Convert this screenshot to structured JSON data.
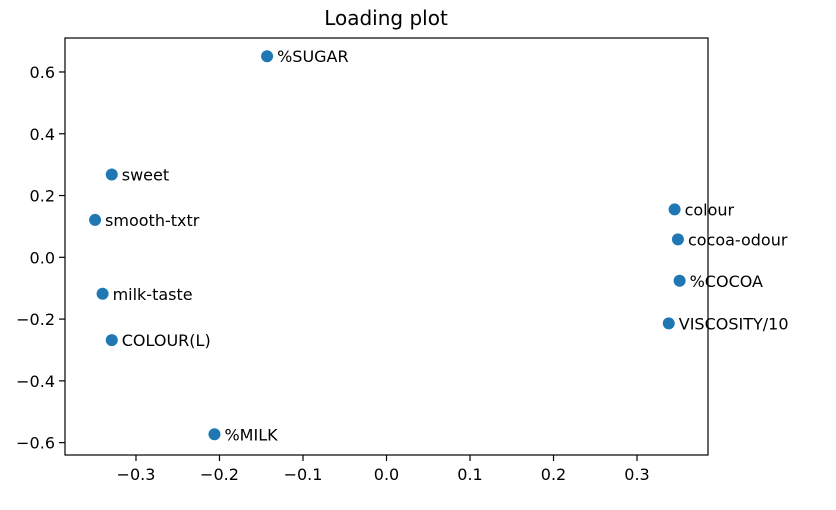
{
  "chart_data": {
    "type": "scatter",
    "title": "Loading plot",
    "xlabel": "",
    "ylabel": "",
    "xlim": [
      -0.385,
      0.385
    ],
    "ylim": [
      -0.64,
      0.71
    ],
    "xticks": [
      -0.3,
      -0.2,
      -0.1,
      0.0,
      0.1,
      0.2,
      0.3
    ],
    "xtick_labels": [
      "−0.3",
      "−0.2",
      "−0.1",
      "0.0",
      "0.1",
      "0.2",
      "0.3"
    ],
    "yticks": [
      -0.6,
      -0.4,
      -0.2,
      0.0,
      0.2,
      0.4,
      0.6
    ],
    "ytick_labels": [
      "−0.6",
      "−0.4",
      "−0.2",
      "0.0",
      "0.2",
      "0.4",
      "0.6"
    ],
    "grid": false,
    "marker_color": "#1f77b4",
    "points": [
      {
        "label": "%SUGAR",
        "x": -0.143,
        "y": 0.651
      },
      {
        "label": "sweet",
        "x": -0.329,
        "y": 0.268
      },
      {
        "label": "smooth-txtr",
        "x": -0.349,
        "y": 0.121
      },
      {
        "label": "milk-taste",
        "x": -0.34,
        "y": -0.118
      },
      {
        "label": "COLOUR(L)",
        "x": -0.329,
        "y": -0.268
      },
      {
        "label": "%MILK",
        "x": -0.206,
        "y": -0.573
      },
      {
        "label": "colour",
        "x": 0.345,
        "y": 0.155
      },
      {
        "label": "cocoa-odour",
        "x": 0.349,
        "y": 0.058
      },
      {
        "label": "%COCOA",
        "x": 0.351,
        "y": -0.076
      },
      {
        "label": "VISCOSITY/10",
        "x": 0.338,
        "y": -0.214
      }
    ]
  }
}
